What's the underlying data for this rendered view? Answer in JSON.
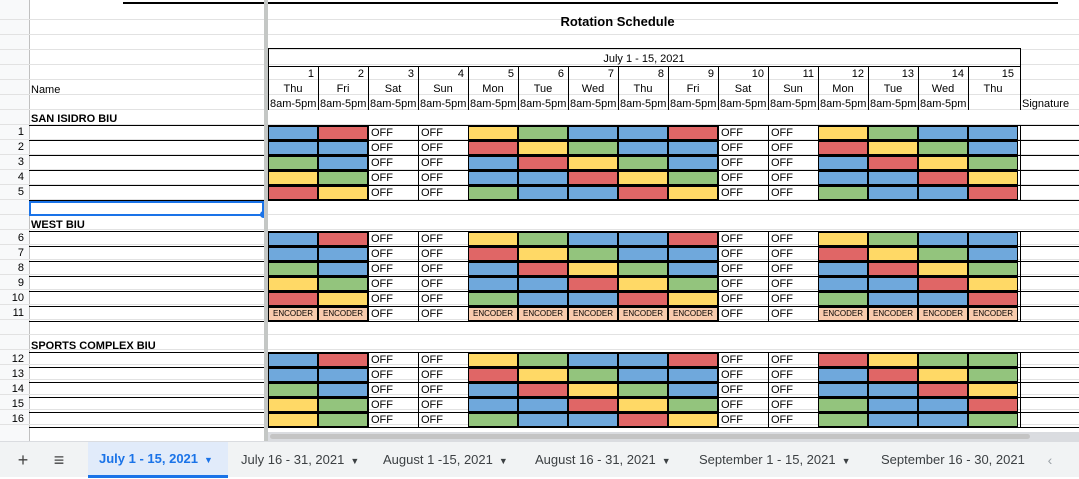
{
  "sheet_title": "Rotation Schedule",
  "period_label": "July 1 - 15, 2021",
  "columns": [
    {
      "num": "1",
      "day": "Thu",
      "time": "8am-5pm"
    },
    {
      "num": "2",
      "day": "Fri",
      "time": "8am-5pm"
    },
    {
      "num": "3",
      "day": "Sat",
      "time": "8am-5pm"
    },
    {
      "num": "4",
      "day": "Sun",
      "time": "8am-5pm"
    },
    {
      "num": "5",
      "day": "Mon",
      "time": "8am-5pm"
    },
    {
      "num": "6",
      "day": "Tue",
      "time": "8am-5pm"
    },
    {
      "num": "7",
      "day": "Wed",
      "time": "8am-5pm"
    },
    {
      "num": "8",
      "day": "Thu",
      "time": "8am-5pm"
    },
    {
      "num": "9",
      "day": "Fri",
      "time": "8am-5pm"
    },
    {
      "num": "10",
      "day": "Sat",
      "time": "8am-5pm"
    },
    {
      "num": "11",
      "day": "Sun",
      "time": "8am-5pm"
    },
    {
      "num": "12",
      "day": "Mon",
      "time": "8am-5pm"
    },
    {
      "num": "13",
      "day": "Tue",
      "time": "8am-5pm"
    },
    {
      "num": "14",
      "day": "Wed",
      "time": "8am-5pm"
    },
    {
      "num": "15",
      "day": "Thu",
      "time": ""
    }
  ],
  "name_header": "Name",
  "signature_header": "Signature",
  "off_label": "OFF",
  "encoder_label": "ENCODER",
  "colors": {
    "B": "#6fa8dc",
    "R": "#e06666",
    "G": "#93c47d",
    "Y": "#ffd966",
    "encoder": "#f8cbad",
    "selection": "#1a73e8"
  },
  "sections": [
    {
      "name": "SAN ISIDRO BIU",
      "rows": [
        {
          "num": "1",
          "cells": [
            "B",
            "R",
            "O",
            "O",
            "Y",
            "G",
            "B",
            "B",
            "R",
            "O",
            "O",
            "Y",
            "G",
            "B",
            "B"
          ]
        },
        {
          "num": "2",
          "cells": [
            "B",
            "B",
            "O",
            "O",
            "R",
            "Y",
            "G",
            "B",
            "B",
            "O",
            "O",
            "R",
            "Y",
            "G",
            "B"
          ]
        },
        {
          "num": "3",
          "cells": [
            "G",
            "B",
            "O",
            "O",
            "B",
            "R",
            "Y",
            "G",
            "B",
            "O",
            "O",
            "B",
            "R",
            "Y",
            "G"
          ]
        },
        {
          "num": "4",
          "cells": [
            "Y",
            "G",
            "O",
            "O",
            "B",
            "B",
            "R",
            "Y",
            "G",
            "O",
            "O",
            "B",
            "B",
            "R",
            "Y"
          ]
        },
        {
          "num": "5",
          "cells": [
            "R",
            "Y",
            "O",
            "O",
            "G",
            "B",
            "B",
            "R",
            "Y",
            "O",
            "O",
            "G",
            "B",
            "B",
            "R"
          ]
        }
      ]
    },
    {
      "name": "WEST BIU",
      "rows": [
        {
          "num": "6",
          "cells": [
            "B",
            "R",
            "O",
            "O",
            "Y",
            "G",
            "B",
            "B",
            "R",
            "O",
            "O",
            "Y",
            "G",
            "B",
            "B"
          ]
        },
        {
          "num": "7",
          "cells": [
            "B",
            "B",
            "O",
            "O",
            "R",
            "Y",
            "G",
            "B",
            "B",
            "O",
            "O",
            "R",
            "Y",
            "G",
            "B"
          ]
        },
        {
          "num": "8",
          "cells": [
            "G",
            "B",
            "O",
            "O",
            "B",
            "R",
            "Y",
            "G",
            "B",
            "O",
            "O",
            "B",
            "R",
            "Y",
            "G"
          ]
        },
        {
          "num": "9",
          "cells": [
            "Y",
            "G",
            "O",
            "O",
            "B",
            "B",
            "R",
            "Y",
            "G",
            "O",
            "O",
            "B",
            "B",
            "R",
            "Y"
          ]
        },
        {
          "num": "10",
          "cells": [
            "R",
            "Y",
            "O",
            "O",
            "G",
            "B",
            "B",
            "R",
            "Y",
            "O",
            "O",
            "G",
            "B",
            "B",
            "R"
          ]
        },
        {
          "num": "11",
          "cells": [
            "E",
            "E",
            "O",
            "O",
            "E",
            "E",
            "E",
            "E",
            "E",
            "O",
            "O",
            "E",
            "E",
            "E",
            "E"
          ]
        }
      ]
    },
    {
      "name": "SPORTS COMPLEX BIU",
      "rows": [
        {
          "num": "12",
          "cells": [
            "B",
            "R",
            "O",
            "O",
            "Y",
            "G",
            "B",
            "B",
            "R",
            "O",
            "O",
            "R",
            "Y",
            "G",
            "G"
          ]
        },
        {
          "num": "13",
          "cells": [
            "B",
            "B",
            "O",
            "O",
            "R",
            "Y",
            "G",
            "B",
            "B",
            "O",
            "O",
            "B",
            "R",
            "Y",
            "G"
          ]
        },
        {
          "num": "14",
          "cells": [
            "G",
            "B",
            "O",
            "O",
            "B",
            "R",
            "Y",
            "G",
            "B",
            "O",
            "O",
            "B",
            "B",
            "R",
            "Y"
          ]
        },
        {
          "num": "15",
          "cells": [
            "Y",
            "G",
            "O",
            "O",
            "B",
            "B",
            "R",
            "Y",
            "G",
            "O",
            "O",
            "G",
            "B",
            "B",
            "R"
          ]
        },
        {
          "num": "16",
          "cells": [
            "Y",
            "G",
            "O",
            "O",
            "G",
            "B",
            "B",
            "R",
            "Y",
            "O",
            "O",
            "G",
            "B",
            "B",
            "G"
          ]
        }
      ]
    }
  ],
  "tabs": {
    "add_icon": "plus-icon",
    "menu_icon": "menu-icon",
    "items": [
      "July 1 - 15, 2021",
      "July 16 - 31, 2021",
      "August 1 -15, 2021",
      "August 16 - 31, 2021",
      "September 1 - 15, 2021",
      "September 16 - 30, 2021"
    ],
    "active_index": 0,
    "scroll_icon": "chevron-left-icon"
  }
}
